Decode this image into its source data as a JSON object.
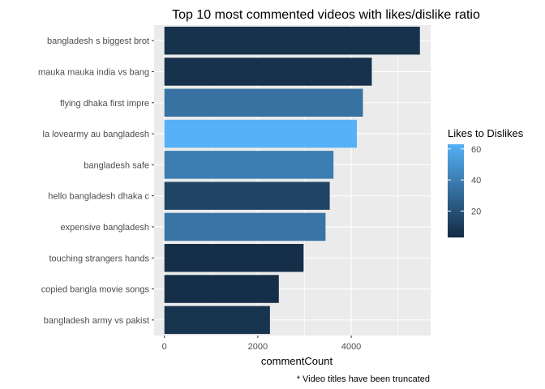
{
  "chart_data": {
    "type": "bar",
    "orientation": "horizontal",
    "title": "Top 10 most commented videos with likes/dislike ratio",
    "xlabel": "commentCount",
    "ylabel": "",
    "caption": "* Video titles have been truncated",
    "categories": [
      "bangladesh s biggest brot",
      "mauka mauka india vs bang",
      "flying  dhaka first impre",
      "la lovearmy au bangladesh",
      "bangladesh safe",
      "hello bangladesh dhaka  c",
      "expensive  bangladesh",
      "touching strangers hands",
      "copied bangla movie songs",
      "bangladesh army vs pakist"
    ],
    "values": [
      5470,
      4440,
      4250,
      4120,
      3620,
      3540,
      3450,
      2980,
      2450,
      2260
    ],
    "fill_values": [
      6,
      6,
      35,
      63,
      40,
      14,
      36,
      5,
      5,
      7
    ],
    "xlim": [
      -220,
      5700
    ],
    "xticks": [
      0,
      2000,
      4000
    ],
    "grid": true,
    "legend": {
      "title": "Likes to Dislikes",
      "position": "right",
      "ticks": [
        20,
        40,
        60
      ],
      "range": [
        3,
        63
      ],
      "color_low": "#132B43",
      "color_high": "#56B1F7"
    },
    "panel_background": "#ebebeb",
    "grid_color": "#ffffff"
  }
}
